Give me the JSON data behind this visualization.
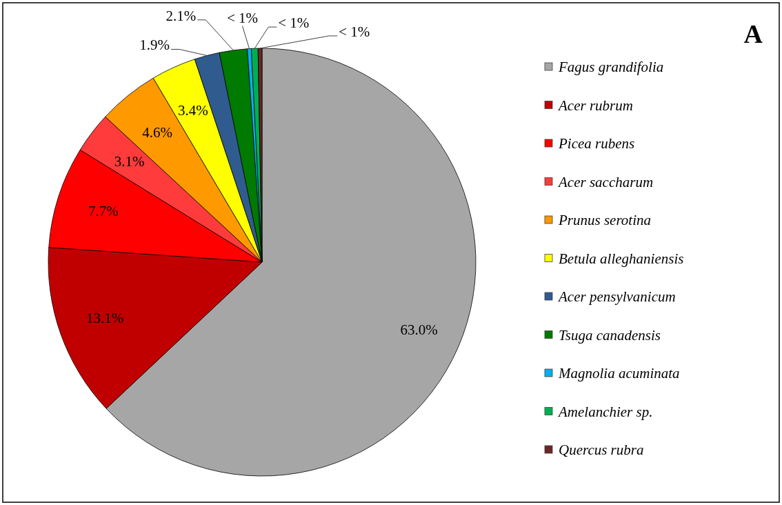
{
  "chart_data": {
    "type": "pie",
    "title": "A",
    "categories": [
      "Fagus grandifolia",
      "Acer rubrum",
      "Picea rubens",
      "Acer saccharum",
      "Prunus serotina",
      "Betula alleghaniensis",
      "Acer pensylvanicum",
      "Tsuga canadensis",
      "Magnolia acuminata",
      "Amelanchier sp.",
      "Quercus rubra"
    ],
    "values": [
      63.0,
      13.1,
      7.7,
      3.1,
      4.6,
      3.4,
      1.9,
      2.1,
      0.3,
      0.5,
      0.3
    ],
    "value_labels": [
      "63.0%",
      "13.1%",
      "7.7%",
      "3.1%",
      "4.6%",
      "3.4%",
      "1.9%",
      "2.1%",
      "< 1%",
      "< 1%",
      "< 1%"
    ],
    "colors": [
      "#a6a6a6",
      "#c00000",
      "#ff0000",
      "#ff3b3b",
      "#ff9900",
      "#ffff00",
      "#2f5b8f",
      "#007a00",
      "#00b0f0",
      "#00b050",
      "#6b2626"
    ],
    "legend": "right"
  }
}
